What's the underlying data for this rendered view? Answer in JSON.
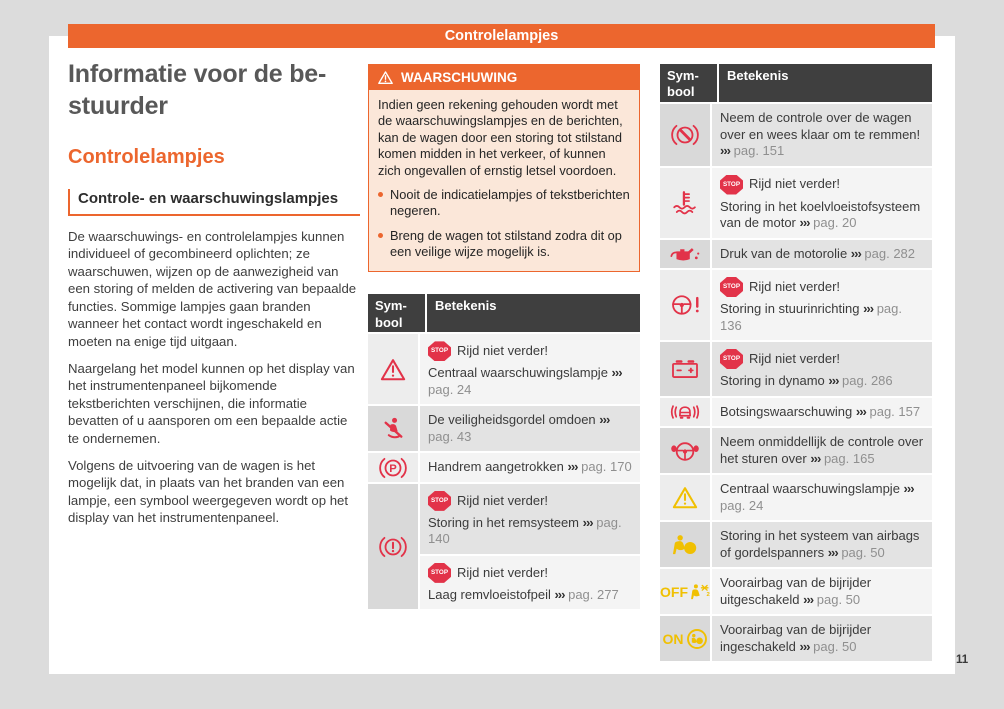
{
  "colors": {
    "accent_orange": "#ec662e",
    "icon_red": "#e23349",
    "icon_yellow": "#f0c002",
    "table_header_bg": "#3f3f3f",
    "warning_body_bg": "#fbe7d9",
    "page_ref_gray": "#8f8f8f"
  },
  "page": {
    "header_title": "Controlelampjes",
    "page_number": "11"
  },
  "left_column": {
    "title_lines": [
      "Informatie voor de be-",
      "stuurder"
    ],
    "chapter_heading": "Controlelampjes",
    "section_heading": "Controle- en waarschuwingslampjes",
    "paragraphs": [
      "De waarschuwings- en controlelampjes kunnen individueel of gecombineerd oplichten; ze waarschuwen, wijzen op de aanwezigheid van een storing of melden de activering van bepaalde functies. Sommige lampjes gaan branden wanneer het contact wordt ingeschakeld en moeten na enige tijd uitgaan.",
      "Naargelang het model kunnen op het display van het instrumentenpaneel bijkomende tekstberichten verschijnen, die informatie bevatten of u aansporen om een bepaalde actie te ondernemen.",
      "Volgens de uitvoering van de wagen is het mogelijk dat, in plaats van het branden van een lampje, een symbool weergegeven wordt op het display van het instrumentenpaneel."
    ]
  },
  "warning_box": {
    "icon": "warning-triangle-icon",
    "title": "WAARSCHUWING",
    "body": "Indien geen rekening gehouden wordt met de waarschuwingslampjes en de berichten, kan de wagen door een storing tot stilstand komen midden in het verkeer, of kunnen zich ongevallen of ernstig letsel voordoen.",
    "bullets": [
      "Nooit de indicatielampjes of tekstberichten negeren.",
      "Breng de wagen tot stilstand zodra dit op een veilige wijze mogelijk is."
    ]
  },
  "labels": {
    "stop_badge": "STOP"
  },
  "tables": {
    "headers": {
      "symbol": "Sym-\nbool",
      "meaning": "Betekenis"
    },
    "middle": {
      "rows": [
        {
          "icon": "warning-triangle-icon",
          "icon_color": "red",
          "icon_label": "",
          "shade": "light",
          "cells": [
            {
              "shade": "light",
              "stop": true,
              "stop_text": "Rijd niet verder!",
              "text": "Centraal waarschuwingslampje",
              "arrows": "›››",
              "page": "pag. 24"
            }
          ]
        },
        {
          "icon": "seatbelt-icon",
          "icon_color": "red",
          "icon_label": "",
          "shade": "dark",
          "cells": [
            {
              "shade": "dark",
              "stop": false,
              "stop_text": "",
              "text": "De veiligheidsgordel omdoen",
              "arrows": "›››",
              "page": "pag. 43"
            }
          ]
        },
        {
          "icon": "handbrake-icon",
          "icon_color": "red",
          "icon_label": "",
          "shade": "light",
          "cells": [
            {
              "shade": "light",
              "stop": false,
              "stop_text": "",
              "text": "Handrem aangetrokken",
              "arrows": "›››",
              "page": "pag. 170"
            }
          ]
        },
        {
          "icon": "brake-warning-icon",
          "icon_color": "red",
          "icon_label": "",
          "shade": "dark",
          "cells": [
            {
              "shade": "dark",
              "stop": true,
              "stop_text": "Rijd niet verder!",
              "text": "Storing in het remsysteem",
              "arrows": "›››",
              "page": "pag. 140"
            },
            {
              "shade": "light",
              "stop": true,
              "stop_text": "Rijd niet verder!",
              "text": "Laag remvloeistofpeil",
              "arrows": "›››",
              "page": "pag. 277"
            }
          ]
        }
      ]
    },
    "right": {
      "rows": [
        {
          "icon": "brake-assist-icon",
          "icon_color": "red",
          "icon_label": "",
          "shade": "dark",
          "cells": [
            {
              "shade": "dark",
              "stop": false,
              "stop_text": "",
              "text": "Neem de controle over de wagen over en wees klaar om te remmen!",
              "arrows": "›››",
              "page": "pag. 151"
            }
          ]
        },
        {
          "icon": "coolant-temperature-icon",
          "icon_color": "red",
          "icon_label": "",
          "shade": "light",
          "cells": [
            {
              "shade": "light",
              "stop": true,
              "stop_text": "Rijd niet verder!",
              "text": "Storing in het koelvloeistofsysteem van de motor",
              "arrows": "›››",
              "page": "pag. 20"
            }
          ]
        },
        {
          "icon": "oil-pressure-icon",
          "icon_color": "red",
          "icon_label": "",
          "shade": "dark",
          "cells": [
            {
              "shade": "dark",
              "stop": false,
              "stop_text": "",
              "text": "Druk van de motorolie",
              "arrows": "›››",
              "page": "pag. 282"
            }
          ]
        },
        {
          "icon": "steering-warning-icon",
          "icon_color": "red",
          "icon_label": "",
          "shade": "light",
          "cells": [
            {
              "shade": "light",
              "stop": true,
              "stop_text": "Rijd niet verder!",
              "text": "Storing in stuurinrichting",
              "arrows": "›››",
              "page": "pag. 136"
            }
          ]
        },
        {
          "icon": "battery-icon",
          "icon_color": "red",
          "icon_label": "",
          "shade": "dark",
          "cells": [
            {
              "shade": "dark",
              "stop": true,
              "stop_text": "Rijd niet verder!",
              "text": "Storing in dynamo",
              "arrows": "›››",
              "page": "pag. 286"
            }
          ]
        },
        {
          "icon": "collision-warning-icon",
          "icon_color": "red",
          "icon_label": "",
          "shade": "light",
          "cells": [
            {
              "shade": "light",
              "stop": false,
              "stop_text": "",
              "text": "Botsingswaarschuwing",
              "arrows": "›››",
              "page": "pag. 157"
            }
          ]
        },
        {
          "icon": "steering-takeover-icon",
          "icon_color": "red",
          "icon_label": "",
          "shade": "dark",
          "cells": [
            {
              "shade": "dark",
              "stop": false,
              "stop_text": "",
              "text": "Neem onmiddellijk de controle over het sturen over",
              "arrows": "›››",
              "page": "pag. 165"
            }
          ]
        },
        {
          "icon": "warning-triangle-icon",
          "icon_color": "yellow",
          "icon_label": "",
          "shade": "light",
          "cells": [
            {
              "shade": "light",
              "stop": false,
              "stop_text": "",
              "text": "Centraal waarschuwingslampje",
              "arrows": "›››",
              "page": "pag. 24"
            }
          ]
        },
        {
          "icon": "airbag-warning-icon",
          "icon_color": "yellow",
          "icon_label": "",
          "shade": "dark",
          "cells": [
            {
              "shade": "dark",
              "stop": false,
              "stop_text": "",
              "text": "Storing in het systeem van airbags of gordelspanners",
              "arrows": "›››",
              "page": "pag. 50"
            }
          ]
        },
        {
          "icon": "airbag-off-icon",
          "icon_color": "yellow",
          "icon_label": "OFF",
          "shade": "light",
          "cells": [
            {
              "shade": "light",
              "stop": false,
              "stop_text": "",
              "text": "Voorairbag van de bijrijder uitgeschakeld",
              "arrows": "›››",
              "page": "pag. 50"
            }
          ]
        },
        {
          "icon": "airbag-on-icon",
          "icon_color": "yellow",
          "icon_label": "ON",
          "shade": "dark",
          "cells": [
            {
              "shade": "dark",
              "stop": false,
              "stop_text": "",
              "text": "Voorairbag van de bijrijder ingeschakeld",
              "arrows": "›››",
              "page": "pag. 50"
            }
          ]
        }
      ]
    }
  }
}
